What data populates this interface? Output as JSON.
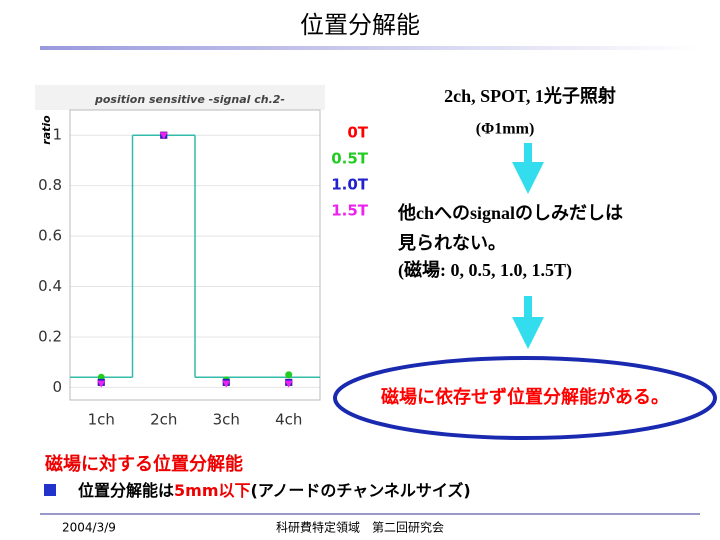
{
  "slide_title": "位置分解能",
  "chart_data": {
    "type": "scatter",
    "title": "position sensitive -signal ch.2-",
    "y_label": "ratio",
    "categories": [
      "1ch",
      "2ch",
      "3ch",
      "4ch"
    ],
    "ylim": [
      -0.05,
      1.1
    ],
    "yticks": [
      0,
      0.2,
      0.4,
      0.6,
      0.8,
      1
    ],
    "grid": true,
    "series": [
      {
        "name": "0T",
        "color": "#ff0000",
        "marker": "square",
        "values": [
          0.02,
          1,
          0.02,
          0.02
        ]
      },
      {
        "name": "0.5T",
        "color": "#22cc22",
        "marker": "circle",
        "values": [
          0.04,
          1,
          0.03,
          0.05
        ]
      },
      {
        "name": "1.0T",
        "color": "#2222cc",
        "marker": "square",
        "values": [
          0.02,
          1,
          0.02,
          0.02
        ]
      },
      {
        "name": "1.5T",
        "color": "#ee22ee",
        "marker": "triangle",
        "values": [
          0.015,
          1,
          0.015,
          0.015
        ]
      }
    ],
    "step_line": {
      "color": "#33bbaa",
      "values": [
        0.04,
        1,
        0.04,
        0.04
      ]
    }
  },
  "notes": {
    "condition": "2ch,  SPOT, 1光子照射",
    "spot": "(Φ1mm)",
    "finding_1": "他chへのsignalのしみだしは",
    "finding_2": "見られない。",
    "fields": "(磁場: 0, 0.5, 1.0, 1.5T)",
    "conclusion": "磁場に依存せず位置分解能がある。"
  },
  "section": {
    "heading": "磁場に対する位置分解能",
    "bullet": [
      "位置分解能は",
      "5mm以下",
      "(アノードのチャンネルサイズ)"
    ]
  },
  "footer": {
    "date": "2004/3/9",
    "event": "科研費特定領域　第二回研究会"
  }
}
